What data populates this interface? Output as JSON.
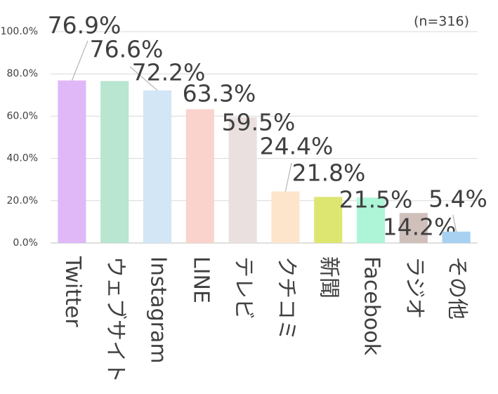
{
  "chart_data": {
    "type": "bar",
    "note": "(n=316)",
    "categories": [
      "Twitter",
      "ウェブサイト",
      "Instagram",
      "LINE",
      "テレビ",
      "クチコミ",
      "新聞",
      "Facebook",
      "ラジオ",
      "その他"
    ],
    "values": [
      76.9,
      76.6,
      72.2,
      63.3,
      59.5,
      24.4,
      21.8,
      21.5,
      14.2,
      5.4
    ],
    "value_labels": [
      "76.9%",
      "76.6%",
      "72.2%",
      "63.3%",
      "59.5%",
      "24.4%",
      "21.8%",
      "21.5%",
      "14.2%",
      "5.4%"
    ],
    "colors": [
      "#e0b8f8",
      "#b8e6d0",
      "#d2e6f5",
      "#f9d3cc",
      "#ebe0e0",
      "#fde5cc",
      "#dde670",
      "#aef5d8",
      "#d0c0bc",
      "#a8d0f0"
    ],
    "ylim": [
      0,
      100
    ],
    "yticks": [
      {
        "value": 0,
        "label": "0.0%"
      },
      {
        "value": 20,
        "label": "20.0%"
      },
      {
        "value": 40,
        "label": "40.0%"
      },
      {
        "value": 60,
        "label": "60.0%"
      },
      {
        "value": 80,
        "label": "80.0%"
      },
      {
        "value": 100,
        "label": "100.0%"
      }
    ],
    "grid": true
  }
}
